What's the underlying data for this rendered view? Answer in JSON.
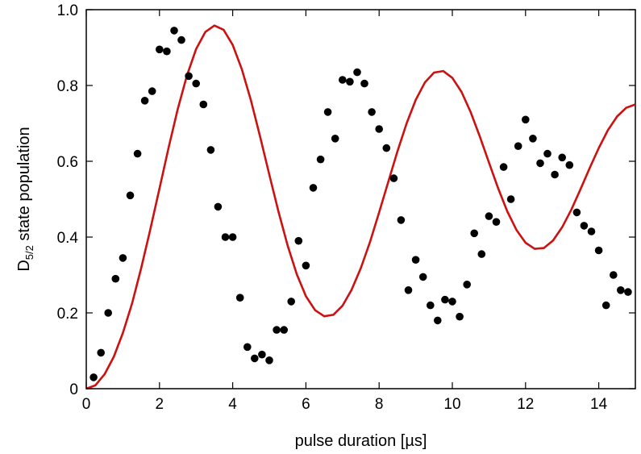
{
  "chart_data": {
    "type": "scatter",
    "title": "",
    "xlabel": "pulse duration [µs]",
    "ylabel": {
      "prefix": "D",
      "subscript": "5/2",
      "suffix": " state population"
    },
    "xlim": [
      0,
      15
    ],
    "ylim": [
      0,
      1.0
    ],
    "x_ticks": [
      0,
      2,
      4,
      6,
      8,
      10,
      12,
      14
    ],
    "x_tick_labels": [
      "0",
      "2",
      "4",
      "6",
      "8",
      "10",
      "12",
      "14"
    ],
    "y_ticks": [
      0,
      0.2,
      0.4,
      0.6,
      0.8,
      1.0
    ],
    "y_tick_labels": [
      "0",
      "0.2",
      "0.4",
      "0.6",
      "0.8",
      "1.0"
    ],
    "grid": false,
    "legend": "none",
    "series": [
      {
        "kind": "points",
        "color": "#000000",
        "points": [
          [
            0.2,
            0.03
          ],
          [
            0.4,
            0.095
          ],
          [
            0.6,
            0.2
          ],
          [
            0.8,
            0.29
          ],
          [
            1.0,
            0.345
          ],
          [
            1.2,
            0.51
          ],
          [
            1.4,
            0.62
          ],
          [
            1.6,
            0.76
          ],
          [
            1.8,
            0.785
          ],
          [
            2.0,
            0.895
          ],
          [
            2.2,
            0.89
          ],
          [
            2.4,
            0.945
          ],
          [
            2.6,
            0.92
          ],
          [
            2.8,
            0.825
          ],
          [
            3.0,
            0.805
          ],
          [
            3.2,
            0.75
          ],
          [
            3.4,
            0.63
          ],
          [
            3.6,
            0.48
          ],
          [
            3.8,
            0.4
          ],
          [
            4.0,
            0.4
          ],
          [
            4.2,
            0.24
          ],
          [
            4.4,
            0.11
          ],
          [
            4.6,
            0.08
          ],
          [
            4.8,
            0.09
          ],
          [
            5.0,
            0.075
          ],
          [
            5.2,
            0.155
          ],
          [
            5.4,
            0.155
          ],
          [
            5.6,
            0.23
          ],
          [
            5.8,
            0.39
          ],
          [
            6.0,
            0.325
          ],
          [
            6.2,
            0.53
          ],
          [
            6.4,
            0.605
          ],
          [
            6.6,
            0.73
          ],
          [
            6.8,
            0.66
          ],
          [
            7.0,
            0.815
          ],
          [
            7.2,
            0.81
          ],
          [
            7.4,
            0.835
          ],
          [
            7.6,
            0.805
          ],
          [
            7.8,
            0.73
          ],
          [
            8.0,
            0.685
          ],
          [
            8.2,
            0.635
          ],
          [
            8.4,
            0.555
          ],
          [
            8.6,
            0.445
          ],
          [
            8.8,
            0.26
          ],
          [
            9.0,
            0.34
          ],
          [
            9.2,
            0.295
          ],
          [
            9.4,
            0.22
          ],
          [
            9.6,
            0.18
          ],
          [
            9.8,
            0.235
          ],
          [
            10.0,
            0.23
          ],
          [
            10.2,
            0.19
          ],
          [
            10.4,
            0.275
          ],
          [
            10.6,
            0.41
          ],
          [
            10.8,
            0.355
          ],
          [
            11.0,
            0.455
          ],
          [
            11.2,
            0.44
          ],
          [
            11.4,
            0.585
          ],
          [
            11.6,
            0.5
          ],
          [
            11.8,
            0.64
          ],
          [
            12.0,
            0.71
          ],
          [
            12.2,
            0.66
          ],
          [
            12.4,
            0.595
          ],
          [
            12.6,
            0.62
          ],
          [
            12.8,
            0.565
          ],
          [
            13.0,
            0.61
          ],
          [
            13.2,
            0.59
          ],
          [
            13.4,
            0.465
          ],
          [
            13.6,
            0.43
          ],
          [
            13.8,
            0.415
          ],
          [
            14.0,
            0.365
          ],
          [
            14.2,
            0.22
          ],
          [
            14.4,
            0.3
          ],
          [
            14.6,
            0.26
          ],
          [
            14.8,
            0.255
          ]
        ]
      },
      {
        "kind": "line",
        "color": "#cc1111",
        "points": [
          [
            0.0,
            0.0
          ],
          [
            0.25,
            0.009
          ],
          [
            0.5,
            0.038
          ],
          [
            0.75,
            0.084
          ],
          [
            1.0,
            0.147
          ],
          [
            1.25,
            0.225
          ],
          [
            1.5,
            0.318
          ],
          [
            1.75,
            0.42
          ],
          [
            2.0,
            0.528
          ],
          [
            2.25,
            0.636
          ],
          [
            2.5,
            0.738
          ],
          [
            2.75,
            0.826
          ],
          [
            3.0,
            0.896
          ],
          [
            3.25,
            0.941
          ],
          [
            3.5,
            0.958
          ],
          [
            3.75,
            0.947
          ],
          [
            4.0,
            0.907
          ],
          [
            4.25,
            0.843
          ],
          [
            4.5,
            0.76
          ],
          [
            4.75,
            0.665
          ],
          [
            5.0,
            0.565
          ],
          [
            5.25,
            0.467
          ],
          [
            5.5,
            0.378
          ],
          [
            5.75,
            0.302
          ],
          [
            6.0,
            0.244
          ],
          [
            6.25,
            0.207
          ],
          [
            6.5,
            0.191
          ],
          [
            6.75,
            0.195
          ],
          [
            7.0,
            0.219
          ],
          [
            7.25,
            0.261
          ],
          [
            7.5,
            0.318
          ],
          [
            7.75,
            0.387
          ],
          [
            8.0,
            0.465
          ],
          [
            8.25,
            0.546
          ],
          [
            8.5,
            0.626
          ],
          [
            8.75,
            0.7
          ],
          [
            9.0,
            0.762
          ],
          [
            9.25,
            0.808
          ],
          [
            9.5,
            0.834
          ],
          [
            9.75,
            0.838
          ],
          [
            10.0,
            0.82
          ],
          [
            10.25,
            0.783
          ],
          [
            10.5,
            0.73
          ],
          [
            10.75,
            0.666
          ],
          [
            11.0,
            0.597
          ],
          [
            11.25,
            0.529
          ],
          [
            11.5,
            0.468
          ],
          [
            11.75,
            0.419
          ],
          [
            12.0,
            0.385
          ],
          [
            12.25,
            0.369
          ],
          [
            12.5,
            0.371
          ],
          [
            12.75,
            0.391
          ],
          [
            13.0,
            0.426
          ],
          [
            13.25,
            0.472
          ],
          [
            13.5,
            0.526
          ],
          [
            13.75,
            0.582
          ],
          [
            14.0,
            0.635
          ],
          [
            14.25,
            0.682
          ],
          [
            14.5,
            0.718
          ],
          [
            14.75,
            0.741
          ],
          [
            15.0,
            0.75
          ]
        ]
      }
    ]
  }
}
